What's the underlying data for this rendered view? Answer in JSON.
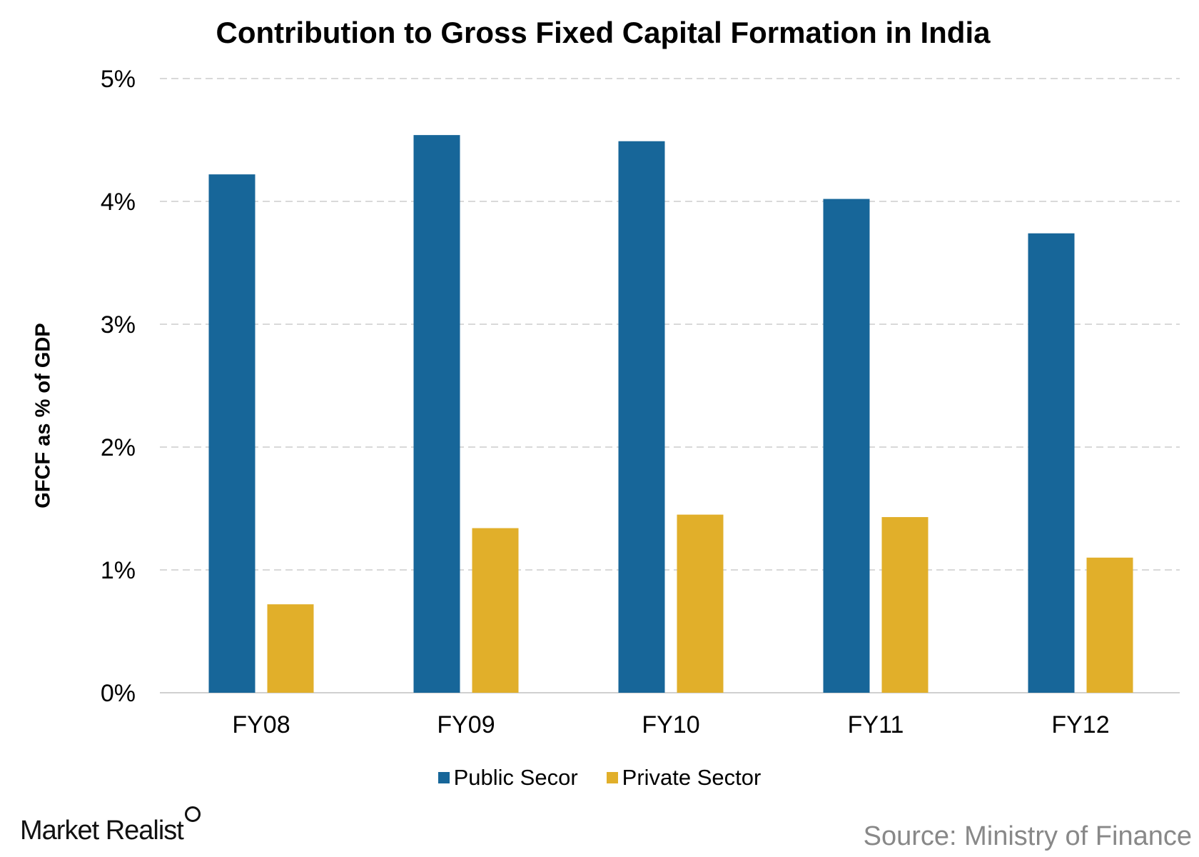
{
  "chart_data": {
    "type": "bar",
    "title": "Contribution to Gross Fixed Capital Formation in India",
    "xlabel": "",
    "ylabel": "GFCF as % of GDP",
    "ylim": [
      0,
      5
    ],
    "yticks": [
      "0%",
      "1%",
      "2%",
      "3%",
      "4%",
      "5%"
    ],
    "grid": true,
    "legend_position": "bottom",
    "categories": [
      "FY08",
      "FY09",
      "FY10",
      "FY11",
      "FY12"
    ],
    "series": [
      {
        "name": "Public Secor",
        "color": "#176699",
        "values": [
          4.22,
          4.54,
          4.49,
          4.02,
          3.74
        ]
      },
      {
        "name": "Private Sector",
        "color": "#E1AF2A",
        "values": [
          0.72,
          1.34,
          1.45,
          1.43,
          1.1
        ]
      }
    ]
  },
  "branding": {
    "logo": "Market Realist",
    "source": "Source: Ministry of Finance"
  }
}
